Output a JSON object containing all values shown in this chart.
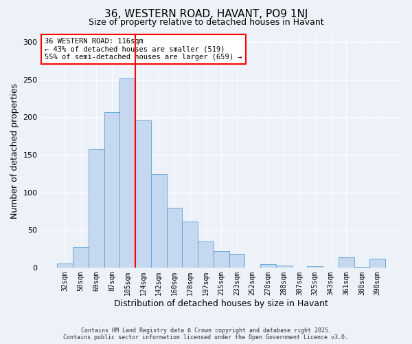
{
  "title": "36, WESTERN ROAD, HAVANT, PO9 1NJ",
  "subtitle": "Size of property relative to detached houses in Havant",
  "bar_labels": [
    "32sqm",
    "50sqm",
    "69sqm",
    "87sqm",
    "105sqm",
    "124sqm",
    "142sqm",
    "160sqm",
    "178sqm",
    "197sqm",
    "215sqm",
    "233sqm",
    "252sqm",
    "270sqm",
    "288sqm",
    "307sqm",
    "325sqm",
    "343sqm",
    "361sqm",
    "380sqm",
    "398sqm"
  ],
  "bar_values": [
    5,
    27,
    157,
    207,
    251,
    196,
    124,
    79,
    61,
    35,
    22,
    18,
    0,
    4,
    3,
    0,
    2,
    0,
    14,
    1,
    12
  ],
  "bar_color": "#c5d8f0",
  "bar_edge_color": "#5a9fd4",
  "ylabel": "Number of detached properties",
  "xlabel": "Distribution of detached houses by size in Havant",
  "ylim": [
    0,
    310
  ],
  "yticks": [
    0,
    50,
    100,
    150,
    200,
    250,
    300
  ],
  "vline_x": 4.5,
  "vline_color": "red",
  "annotation_title": "36 WESTERN ROAD: 116sqm",
  "annotation_line1": "← 43% of detached houses are smaller (519)",
  "annotation_line2": "55% of semi-detached houses are larger (659) →",
  "annotation_box_color": "#ffffff",
  "annotation_border_color": "red",
  "footnote1": "Contains HM Land Registry data © Crown copyright and database right 2025.",
  "footnote2": "Contains public sector information licensed under the Open Government Licence v3.0.",
  "background_color": "#edf2f9",
  "plot_bg_color": "#edf2f9",
  "title_fontsize": 11,
  "subtitle_fontsize": 9,
  "axis_label_fontsize": 9,
  "tick_fontsize": 7,
  "annotation_fontsize": 7.5,
  "footnote_fontsize": 6
}
